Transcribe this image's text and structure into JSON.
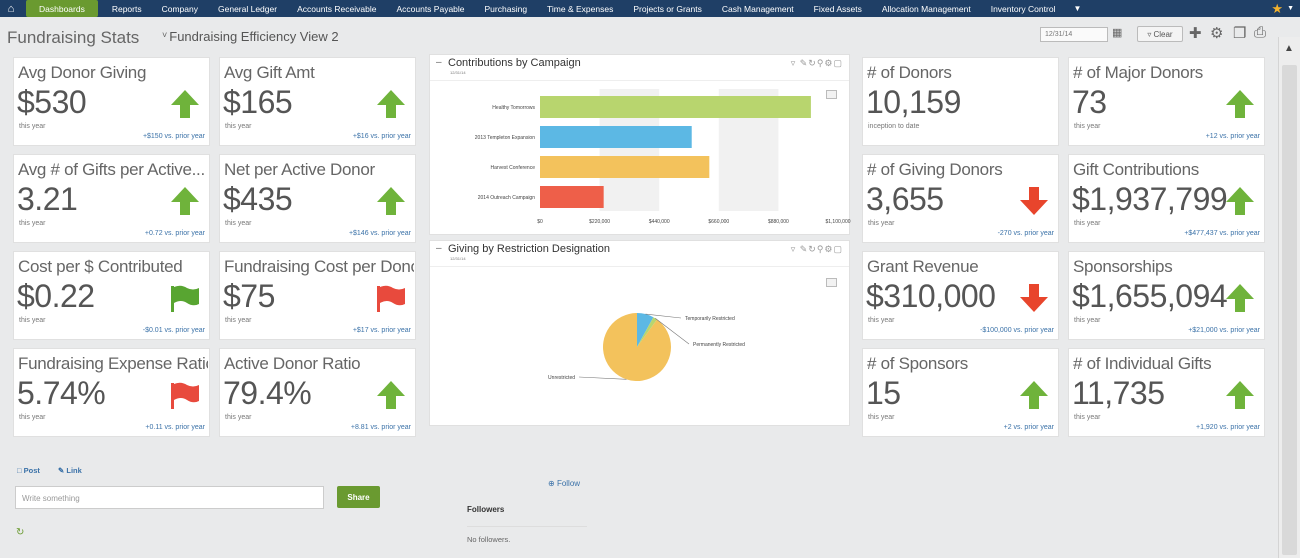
{
  "nav": {
    "items": [
      "Dashboards",
      "Reports",
      "Company",
      "General Ledger",
      "Accounts Receivable",
      "Accounts Payable",
      "Purchasing",
      "Time & Expenses",
      "Projects or Grants",
      "Cash Management",
      "Fixed Assets",
      "Allocation Management",
      "Inventory Control"
    ],
    "active": "Dashboards"
  },
  "header": {
    "title": "Fundraising Stats",
    "view": "Fundraising Efficiency View 2",
    "date": "12/31/14",
    "clear_label": "Clear"
  },
  "cards": [
    {
      "label": "Avg Donor Giving",
      "value": "$530",
      "sub": "this year",
      "comparison": "+$150 vs. prior year",
      "indicator": "up-arrow"
    },
    {
      "label": "Avg Gift Amt",
      "value": "$165",
      "sub": "this year",
      "comparison": "+$16 vs. prior year",
      "indicator": "up-arrow"
    },
    {
      "label": "Avg # of Gifts per Active...",
      "value": "3.21",
      "sub": "this year",
      "comparison": "+0.72 vs. prior year",
      "indicator": "up-arrow"
    },
    {
      "label": "Net per Active Donor",
      "value": "$435",
      "sub": "this year",
      "comparison": "+$146 vs. prior year",
      "indicator": "up-arrow"
    },
    {
      "label": "Cost per $ Contributed",
      "value": "$0.22",
      "sub": "this year",
      "comparison": "-$0.01 vs. prior year",
      "indicator": "green-flag"
    },
    {
      "label": "Fundraising Cost per Donor",
      "value": "$75",
      "sub": "this year",
      "comparison": "+$17 vs. prior year",
      "indicator": "red-flag"
    },
    {
      "label": "Fundraising Expense Ratio",
      "value": "5.74%",
      "sub": "this year",
      "comparison": "+0.11 vs. prior year",
      "indicator": "red-flag"
    },
    {
      "label": "Active Donor Ratio",
      "value": "79.4%",
      "sub": "this year",
      "comparison": "+8.81 vs. prior year",
      "indicator": "up-arrow"
    },
    {
      "label": "# of Donors",
      "value": "10,159",
      "sub": "inception to date",
      "comparison": "",
      "indicator": "none"
    },
    {
      "label": "# of Major Donors",
      "value": "73",
      "sub": "this year",
      "comparison": "+12 vs. prior year",
      "indicator": "up-arrow"
    },
    {
      "label": "# of Giving Donors",
      "value": "3,655",
      "sub": "this year",
      "comparison": "-270 vs. prior year",
      "indicator": "down-arrow"
    },
    {
      "label": "Gift Contributions",
      "value": "$1,937,799",
      "sub": "this year",
      "comparison": "+$477,437 vs. prior year",
      "indicator": "up-arrow"
    },
    {
      "label": "Grant Revenue",
      "value": "$310,000",
      "sub": "this year",
      "comparison": "-$100,000 vs. prior year",
      "indicator": "down-arrow"
    },
    {
      "label": "Sponsorships",
      "value": "$1,655,094",
      "sub": "this year",
      "comparison": "+$21,000 vs. prior year",
      "indicator": "up-arrow"
    },
    {
      "label": "# of Sponsors",
      "value": "15",
      "sub": "this year",
      "comparison": "+2 vs. prior year",
      "indicator": "up-arrow"
    },
    {
      "label": "# of Individual Gifts",
      "value": "11,735",
      "sub": "this year",
      "comparison": "+1,920 vs. prior year",
      "indicator": "up-arrow"
    }
  ],
  "colors": {
    "up": "#6fb33b",
    "down": "#e8452c",
    "green_flag": "#58a531",
    "red_flag": "#e84a3d",
    "nav_bg": "#1f3f66",
    "nav_active": "#6a9a30"
  },
  "panels": {
    "contributions": {
      "title": "Contributions by Campaign",
      "date": "12/31/14"
    },
    "restriction": {
      "title": "Giving by Restriction Designation",
      "date": "12/31/14"
    }
  },
  "chart_data": [
    {
      "type": "bar",
      "orientation": "horizontal",
      "title": "Contributions by Campaign",
      "categories": [
        "Healthy Tomorrows",
        "2013 Templeton Expansion",
        "Harvest Conference",
        "2014 Outreach Campaign"
      ],
      "values": [
        1000000,
        560000,
        625000,
        235000
      ],
      "colors": [
        "#b8d56e",
        "#5cb8e4",
        "#f3c25c",
        "#ee5f49"
      ],
      "xticks": [
        "$0",
        "$220,000",
        "$440,000",
        "$660,000",
        "$880,000",
        "$1,100,000"
      ],
      "xlim": [
        0,
        1100000
      ]
    },
    {
      "type": "pie",
      "title": "Giving by Restriction Designation",
      "labels": [
        "Unrestricted",
        "Temporarily Restricted",
        "Permanently Restricted"
      ],
      "values": [
        90,
        8,
        2
      ],
      "colors": [
        "#f3c25c",
        "#5cb8e4",
        "#b8d56e"
      ]
    }
  ],
  "social": {
    "post_label": "Post",
    "link_label": "Link",
    "placeholder": "Write something",
    "share_label": "Share",
    "follow_label": "Follow",
    "followers_label": "Followers",
    "no_followers": "No followers."
  }
}
